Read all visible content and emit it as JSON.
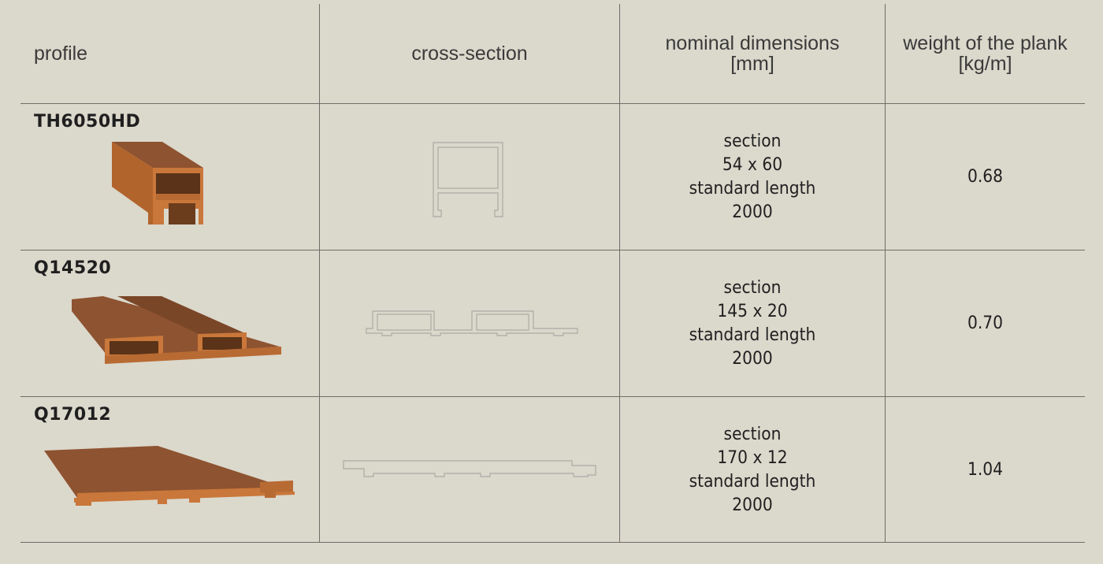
{
  "header": {
    "profile": "profile",
    "cross_section": "cross-section",
    "dimensions_line1": "nominal dimensions",
    "dimensions_line2": "[mm]",
    "weight_line1": "weight of the plank",
    "weight_line2": "[kg/m]"
  },
  "rows": [
    {
      "code": "TH6050HD",
      "section_label": "section",
      "section": "54 x 60",
      "length_label": "standard length",
      "length": "2000",
      "weight": "0.68"
    },
    {
      "code": "Q14520",
      "section_label": "section",
      "section": "145 x 20",
      "length_label": "standard length",
      "length": "2000",
      "weight": "0.70"
    },
    {
      "code": "Q17012",
      "section_label": "section",
      "section": "170 x 12",
      "length_label": "standard length",
      "length": "2000",
      "weight": "1.04"
    }
  ],
  "colors": {
    "background": "#dbd8cc",
    "grid_line": "#6f6d67",
    "wood_front": "#c9773a",
    "wood_top": "#8e5330",
    "cross_section_stroke": "#b3b1a9"
  },
  "icons": [
    "th6050hd-profile-image",
    "q14520-profile-image",
    "q17012-profile-image"
  ]
}
